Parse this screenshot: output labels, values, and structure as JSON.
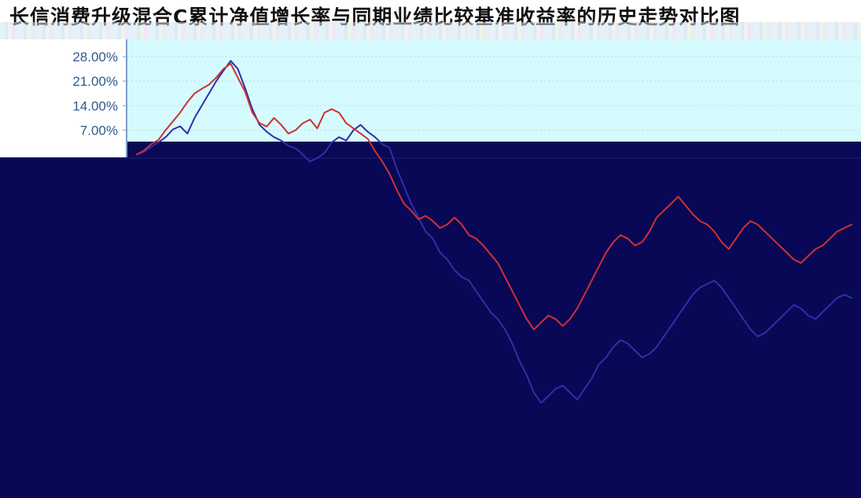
{
  "chart_data": {
    "type": "line",
    "title": "长信消费升级混合C累计净值增长率与同期业绩比较基准收益率的历史走势对比图",
    "xlabel": "",
    "ylabel": "",
    "ylim": [
      -84,
      28
    ],
    "ticks": [
      28,
      21,
      14,
      7
    ],
    "tick_labels": [
      "28.00%",
      "21.00%",
      "14.00%",
      "7.00%"
    ],
    "grid": true,
    "series": [
      {
        "values": [
          0.0,
          0.8,
          2.2,
          3.5,
          5.0,
          7.2,
          8.1,
          6.0,
          10.5,
          14.0,
          17.5,
          21.0,
          24.0,
          26.8,
          24.5,
          19.0,
          13.0,
          8.5,
          6.5,
          5.0,
          4.0,
          2.5,
          1.8,
          0.0,
          -2.0,
          -1.0,
          0.5,
          3.5,
          5.0,
          4.0,
          7.0,
          8.5,
          6.5,
          5.0,
          3.0,
          2.0,
          -4.0,
          -9.0,
          -14.0,
          -18.0,
          -22.0,
          -24.0,
          -28.0,
          -30.0,
          -33.0,
          -35.0,
          -36.0,
          -39.0,
          -42.0,
          -45.0,
          -47.0,
          -50.0,
          -54.0,
          -59.0,
          -63.0,
          -68.0,
          -71.0,
          -69.0,
          -67.0,
          -66.0,
          -68.0,
          -70.0,
          -67.0,
          -64.0,
          -60.0,
          -58.0,
          -55.0,
          -53.0,
          -54.0,
          -56.0,
          -58.0,
          -57.0,
          -55.0,
          -52.0,
          -49.0,
          -46.0,
          -43.0,
          -40.0,
          -38.0,
          -37.0,
          -36.0,
          -38.0,
          -41.0,
          -44.0,
          -47.0,
          -50.0,
          -52.0,
          -51.0,
          -49.0,
          -47.0,
          -45.0,
          -43.0,
          -44.0,
          -46.0,
          -47.0,
          -45.0,
          -43.0,
          -41.0,
          -40.0,
          -41.0
        ],
        "color": "#2f2fa8"
      },
      {
        "values": [
          0.0,
          1.2,
          3.0,
          4.2,
          7.0,
          9.5,
          12.0,
          15.0,
          17.5,
          18.8,
          20.0,
          22.0,
          24.5,
          26.0,
          22.0,
          18.0,
          12.0,
          9.0,
          8.0,
          10.5,
          8.5,
          6.0,
          7.0,
          9.0,
          10.0,
          7.5,
          12.0,
          13.0,
          12.0,
          9.0,
          7.5,
          6.0,
          4.5,
          1.0,
          -2.0,
          -5.5,
          -10.0,
          -14.0,
          -16.0,
          -18.5,
          -17.5,
          -19.0,
          -21.0,
          -20.0,
          -18.0,
          -20.0,
          -23.0,
          -24.0,
          -26.0,
          -28.5,
          -31.0,
          -35.0,
          -39.0,
          -43.0,
          -47.0,
          -50.0,
          -48.0,
          -46.0,
          -47.0,
          -49.0,
          -47.0,
          -44.0,
          -40.0,
          -36.0,
          -32.0,
          -28.0,
          -25.0,
          -23.0,
          -24.0,
          -26.0,
          -25.0,
          -22.0,
          -18.0,
          -16.0,
          -14.0,
          -12.0,
          -14.5,
          -17.0,
          -19.0,
          -20.0,
          -22.0,
          -25.0,
          -27.0,
          -24.0,
          -21.0,
          -19.0,
          -20.0,
          -22.0,
          -24.0,
          -26.0,
          -28.0,
          -30.0,
          -31.0,
          -29.0,
          -27.0,
          -26.0,
          -24.0,
          -22.0,
          -21.0,
          -20.0
        ],
        "color": "#cf3030"
      }
    ]
  }
}
